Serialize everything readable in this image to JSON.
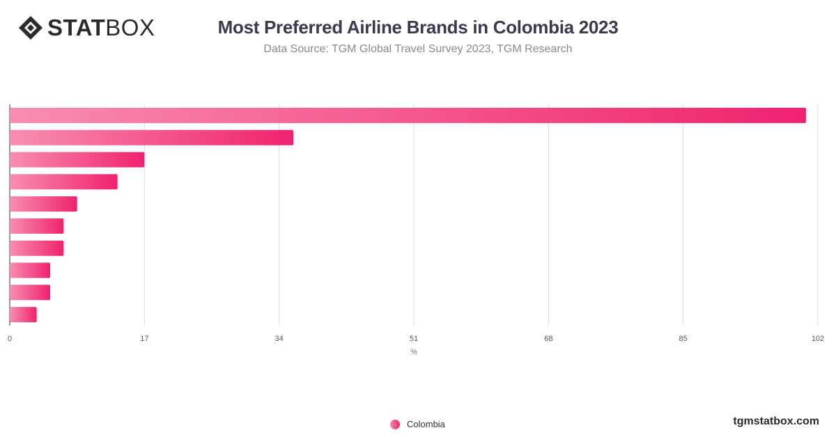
{
  "brand": {
    "logo_bold": "STAT",
    "logo_light": "BOX",
    "footer": "tgmstatbox.com"
  },
  "header": {
    "title": "Most Preferred Airline Brands in Colombia 2023",
    "subtitle": "Data Source: TGM Global Travel Survey 2023, TGM Research"
  },
  "colors": {
    "bar_start": "#f88db0",
    "bar_end": "#f0226f",
    "grid": "#dddddd",
    "axis": "#333333"
  },
  "chart_data": {
    "type": "bar",
    "orientation": "horizontal",
    "categories": [
      "",
      "",
      "",
      "",
      "",
      "",
      "",
      "",
      "",
      ""
    ],
    "series": [
      {
        "name": "Colombia",
        "values": [
          100.5,
          35.8,
          17.0,
          13.6,
          8.5,
          6.8,
          6.8,
          5.1,
          5.1,
          3.4
        ]
      }
    ],
    "xlabel": "%",
    "ylabel": "",
    "xlim": [
      0,
      102
    ],
    "xticks": [
      "0",
      "17",
      "34",
      "51",
      "68",
      "85",
      "102"
    ],
    "grid": true,
    "legend_position": "bottom-center"
  }
}
